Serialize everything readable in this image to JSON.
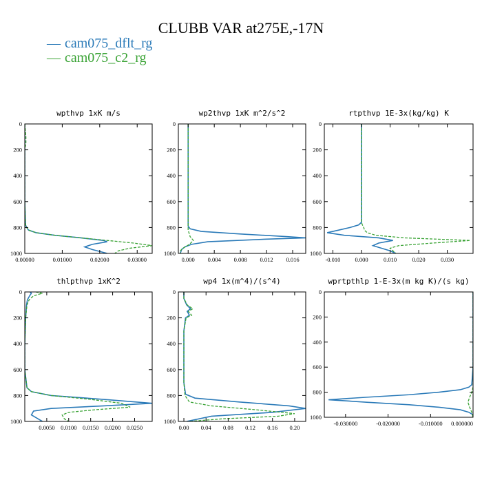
{
  "figure": {
    "title": "CLUBB VAR at275E,-17N"
  },
  "legend": [
    {
      "name": "cam075_dflt_rg",
      "color": "#2a7ab8",
      "style": "solid"
    },
    {
      "name": "cam075_c2_rg",
      "color": "#3aa335",
      "style": "dashed"
    }
  ],
  "chart_data": [
    {
      "type": "line",
      "title": "wpthvp   1xK m/s",
      "xlim": [
        0,
        0.034
      ],
      "ylim": [
        1000,
        0
      ],
      "grid": false,
      "xticks": [
        0,
        0.01,
        0.02,
        0.03
      ],
      "xtick_labels": [
        "0.00000",
        "0.01000",
        "0.02000",
        "0.03000"
      ],
      "yticks": [
        0,
        200,
        400,
        600,
        800,
        1000
      ],
      "ytick_labels": [
        "0",
        "200",
        "400",
        "600",
        "800",
        "1000"
      ],
      "series": [
        {
          "name": "cam075_dflt_rg",
          "y": [
            0,
            100,
            200,
            400,
            600,
            780,
            800,
            820,
            840,
            860,
            880,
            900,
            910,
            930,
            950,
            970,
            1000
          ],
          "x": [
            0,
            0,
            0,
            0,
            0,
            0.0002,
            0.0005,
            0.001,
            0.003,
            0.008,
            0.015,
            0.021,
            0.022,
            0.018,
            0.016,
            0.018,
            0.022
          ]
        },
        {
          "name": "cam075_c2_rg",
          "y": [
            0,
            100,
            150,
            200,
            400,
            600,
            780,
            800,
            820,
            840,
            860,
            880,
            900,
            920,
            940,
            960,
            980,
            1000
          ],
          "x": [
            0,
            0.0003,
            0.0003,
            0,
            0,
            0,
            0.0002,
            0.0005,
            0.001,
            0.003,
            0.008,
            0.015,
            0.022,
            0.029,
            0.034,
            0.028,
            0.025,
            0.024
          ]
        }
      ]
    },
    {
      "type": "line",
      "title": "wp2thvp   1xK m^2/s^2",
      "xlim": [
        -0.0015,
        0.018
      ],
      "ylim": [
        1000,
        0
      ],
      "grid": false,
      "xticks": [
        0,
        0.004,
        0.008,
        0.012,
        0.016
      ],
      "xtick_labels": [
        "0.000",
        "0.004",
        "0.008",
        "0.012",
        "0.016"
      ],
      "yticks": [
        0,
        200,
        400,
        600,
        800,
        1000
      ],
      "ytick_labels": [
        "0",
        "200",
        "400",
        "600",
        "800",
        "1000"
      ],
      "series": [
        {
          "name": "cam075_dflt_rg",
          "y": [
            0,
            100,
            400,
            700,
            790,
            810,
            830,
            850,
            870,
            880,
            890,
            910,
            930,
            950,
            970,
            1000
          ],
          "x": [
            0,
            0,
            0,
            0,
            0,
            0.0003,
            0.002,
            0.008,
            0.015,
            0.018,
            0.012,
            0.003,
            0.0005,
            -0.0005,
            -0.001,
            -0.0012
          ]
        },
        {
          "name": "cam075_c2_rg",
          "y": [
            0,
            100,
            400,
            700,
            820,
            870,
            900,
            930,
            960,
            980,
            1000
          ],
          "x": [
            0,
            0,
            0,
            0,
            0,
            0.0003,
            0.0008,
            0.0002,
            -0.0008,
            -0.0012,
            -0.0012
          ]
        }
      ]
    },
    {
      "type": "line",
      "title": "rtpthvp   1E-3x(kg/kg) K",
      "xlim": [
        -0.013,
        0.039
      ],
      "ylim": [
        1000,
        0
      ],
      "grid": false,
      "xticks": [
        -0.01,
        0,
        0.01,
        0.02,
        0.03
      ],
      "xtick_labels": [
        "-0.010",
        "0.000",
        "0.010",
        "0.020",
        "0.030"
      ],
      "yticks": [
        0,
        200,
        400,
        600,
        800,
        1000
      ],
      "ytick_labels": [
        "0",
        "200",
        "400",
        "600",
        "800",
        "1000"
      ],
      "series": [
        {
          "name": "cam075_dflt_rg",
          "y": [
            0,
            300,
            600,
            760,
            780,
            800,
            820,
            840,
            860,
            880,
            900,
            920,
            940,
            960,
            980,
            1000
          ],
          "x": [
            0,
            0,
            0,
            0,
            -0.001,
            -0.004,
            -0.008,
            -0.012,
            -0.006,
            0.006,
            0.011,
            0.006,
            0.004,
            0.007,
            0.01,
            0.012
          ]
        },
        {
          "name": "cam075_c2_rg",
          "y": [
            0,
            300,
            600,
            760,
            780,
            800,
            820,
            840,
            860,
            880,
            900,
            920,
            940,
            960,
            980,
            1000
          ],
          "x": [
            0,
            0,
            0,
            0,
            0.0003,
            0.0008,
            0.001,
            0.002,
            0.005,
            0.015,
            0.038,
            0.025,
            0.013,
            0.01,
            0.011,
            0.012
          ]
        }
      ]
    },
    {
      "type": "line",
      "title": "thlpthvp   1xK^2",
      "xlim": [
        0,
        0.029
      ],
      "ylim": [
        1000,
        0
      ],
      "grid": false,
      "xticks": [
        0.005,
        0.01,
        0.015,
        0.02,
        0.025
      ],
      "xtick_labels": [
        "0.0050",
        "0.0100",
        "0.0150",
        "0.0200",
        "0.0250"
      ],
      "yticks": [
        0,
        200,
        400,
        600,
        800,
        1000
      ],
      "ytick_labels": [
        "0",
        "200",
        "400",
        "600",
        "800",
        "1000"
      ],
      "series": [
        {
          "name": "cam075_dflt_rg",
          "y": [
            0,
            10,
            30,
            60,
            100,
            200,
            400,
            600,
            740,
            770,
            800,
            830,
            860,
            880,
            900,
            920,
            950,
            980,
            1000
          ],
          "x": [
            0.0012,
            0.0015,
            0.0011,
            0.0006,
            0.0004,
            0.0002,
            0,
            0,
            0.0005,
            0.0015,
            0.006,
            0.018,
            0.029,
            0.018,
            0.006,
            0.002,
            0.0015,
            0.003,
            0.004
          ]
        },
        {
          "name": "cam075_c2_rg",
          "y": [
            0,
            10,
            30,
            60,
            100,
            200,
            400,
            600,
            740,
            770,
            800,
            830,
            860,
            890,
            910,
            930,
            950,
            980,
            1000
          ],
          "x": [
            0.0025,
            0.004,
            0.002,
            0.001,
            0.0005,
            0.0002,
            0,
            0,
            0.0005,
            0.0015,
            0.006,
            0.015,
            0.022,
            0.024,
            0.016,
            0.01,
            0.0085,
            0.009,
            0.01
          ]
        }
      ]
    },
    {
      "type": "line",
      "title": "wp4   1x(m^4)/(s^4)",
      "xlim": [
        -0.01,
        0.22
      ],
      "ylim": [
        1000,
        0
      ],
      "grid": false,
      "xticks": [
        0,
        0.04,
        0.08,
        0.12,
        0.16,
        0.2
      ],
      "xtick_labels": [
        "0.00",
        "0.04",
        "0.08",
        "0.12",
        "0.16",
        "0.20"
      ],
      "yticks": [
        0,
        200,
        400,
        600,
        800,
        1000
      ],
      "ytick_labels": [
        "0",
        "200",
        "400",
        "600",
        "800",
        "1000"
      ],
      "series": [
        {
          "name": "cam075_dflt_rg",
          "y": [
            0,
            50,
            100,
            130,
            150,
            180,
            200,
            300,
            500,
            700,
            790,
            820,
            850,
            880,
            900,
            930,
            960,
            1000
          ],
          "x": [
            0,
            0,
            0.005,
            0.012,
            0.006,
            0.01,
            0.003,
            0,
            0,
            0,
            0.003,
            0.02,
            0.1,
            0.19,
            0.22,
            0.16,
            0.05,
            0.005
          ]
        },
        {
          "name": "cam075_c2_rg",
          "y": [
            0,
            50,
            100,
            130,
            150,
            180,
            200,
            300,
            500,
            700,
            800,
            850,
            880,
            910,
            940,
            960,
            980,
            1000
          ],
          "x": [
            0,
            0,
            0.006,
            0.016,
            0.008,
            0.014,
            0.004,
            0,
            0,
            0,
            0.002,
            0.01,
            0.05,
            0.13,
            0.2,
            0.17,
            0.07,
            0.01
          ]
        }
      ]
    },
    {
      "type": "line",
      "title": "wprtpthlp   1-E-3x(m kg K)/(s kg)",
      "xlim": [
        -0.035,
        0
      ],
      "ylim": [
        1000,
        0
      ],
      "grid": false,
      "xticks": [
        -0.03,
        -0.02,
        -0.01,
        0
      ],
      "xtick_labels": [
        "-0.030000",
        "-0.020000",
        "-0.010000",
        "0.000000"
      ],
      "yticks": [
        0,
        200,
        400,
        600,
        800,
        1000
      ],
      "ytick_labels": [
        "0",
        "200",
        "400",
        "600",
        "800",
        "1000"
      ],
      "series": [
        {
          "name": "cam075_dflt_rg",
          "y": [
            0,
            300,
            600,
            740,
            760,
            780,
            800,
            820,
            840,
            860,
            880,
            900,
            920,
            940,
            960,
            980,
            1000
          ],
          "x": [
            0,
            0,
            0,
            -0.0003,
            -0.001,
            -0.003,
            -0.008,
            -0.015,
            -0.025,
            -0.034,
            -0.025,
            -0.015,
            -0.008,
            -0.003,
            -0.001,
            0,
            0
          ]
        },
        {
          "name": "cam075_c2_rg",
          "y": [
            0,
            300,
            600,
            760,
            800,
            840,
            880,
            920,
            960,
            1000
          ],
          "x": [
            0,
            0,
            0,
            0,
            -0.0003,
            -0.0008,
            -0.0012,
            -0.0008,
            -0.0003,
            0
          ]
        }
      ]
    }
  ]
}
